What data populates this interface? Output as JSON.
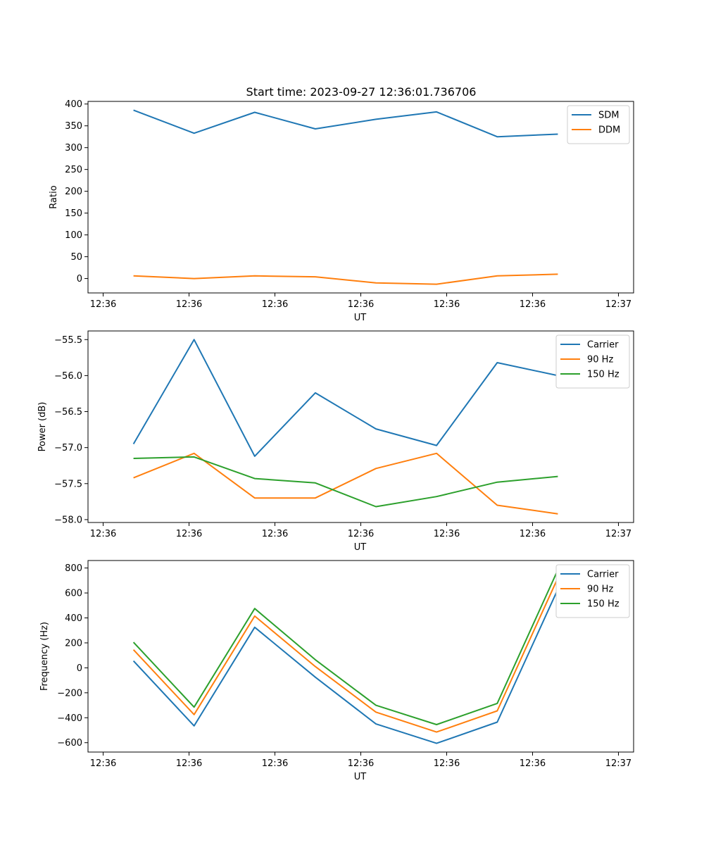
{
  "figure": {
    "title": "Start time: 2023-09-27 12:36:01.736706"
  },
  "chart_data": [
    {
      "type": "line",
      "xlabel": "UT",
      "ylabel": "Ratio",
      "xticks": [
        "12:36",
        "12:36",
        "12:36",
        "12:36",
        "12:36",
        "12:36",
        "12:37"
      ],
      "x": [
        1,
        2,
        3,
        4,
        5,
        6,
        7,
        8
      ],
      "xlim": [
        0.25,
        9.25
      ],
      "ylim": [
        -33,
        406
      ],
      "yticks": [
        0,
        50,
        100,
        150,
        200,
        250,
        300,
        350,
        400
      ],
      "legend": "top-right",
      "series": [
        {
          "name": "SDM",
          "color": "#1f77b4",
          "values": [
            386,
            333,
            381,
            343,
            365,
            382,
            325,
            331
          ]
        },
        {
          "name": "DDM",
          "color": "#ff7f0e",
          "values": [
            6,
            0,
            6,
            4,
            -10,
            -13,
            6,
            10
          ]
        }
      ]
    },
    {
      "type": "line",
      "xlabel": "UT",
      "ylabel": "Power (dB)",
      "xticks": [
        "12:36",
        "12:36",
        "12:36",
        "12:36",
        "12:36",
        "12:36",
        "12:37"
      ],
      "x": [
        1,
        2,
        3,
        4,
        5,
        6,
        7,
        8
      ],
      "xlim": [
        0.25,
        9.25
      ],
      "ylim": [
        -58.04,
        -55.38
      ],
      "yticks": [
        -58.0,
        -57.5,
        -57.0,
        -56.5,
        -56.0,
        -55.5
      ],
      "legend": "top-right",
      "series": [
        {
          "name": "Carrier",
          "color": "#1f77b4",
          "values": [
            -56.95,
            -55.5,
            -57.12,
            -56.24,
            -56.74,
            -56.97,
            -55.82,
            -56.0
          ]
        },
        {
          "name": "90 Hz",
          "color": "#ff7f0e",
          "values": [
            -57.42,
            -57.08,
            -57.7,
            -57.7,
            -57.29,
            -57.08,
            -57.8,
            -57.92
          ]
        },
        {
          "name": "150 Hz",
          "color": "#2ca02c",
          "values": [
            -57.15,
            -57.13,
            -57.43,
            -57.49,
            -57.82,
            -57.68,
            -57.48,
            -57.4
          ]
        }
      ]
    },
    {
      "type": "line",
      "xlabel": "UT",
      "ylabel": "Frequency (Hz)",
      "xticks": [
        "12:36",
        "12:36",
        "12:36",
        "12:36",
        "12:36",
        "12:36",
        "12:37"
      ],
      "x": [
        1,
        2,
        3,
        4,
        5,
        6,
        7,
        8
      ],
      "xlim": [
        0.25,
        9.25
      ],
      "ylim": [
        -675,
        860
      ],
      "yticks": [
        -600,
        -400,
        -200,
        0,
        200,
        400,
        600,
        800
      ],
      "legend": "top-right",
      "series": [
        {
          "name": "Carrier",
          "color": "#1f77b4",
          "values": [
            55,
            -465,
            325,
            -75,
            -450,
            -605,
            -435,
            630
          ]
        },
        {
          "name": "90 Hz",
          "color": "#ff7f0e",
          "values": [
            145,
            -375,
            415,
            10,
            -355,
            -515,
            -345,
            720
          ]
        },
        {
          "name": "150 Hz",
          "color": "#2ca02c",
          "values": [
            205,
            -315,
            475,
            65,
            -300,
            -455,
            -285,
            785
          ]
        }
      ]
    }
  ]
}
